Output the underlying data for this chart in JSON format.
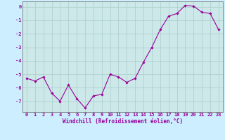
{
  "x": [
    0,
    1,
    2,
    3,
    4,
    5,
    6,
    7,
    8,
    9,
    10,
    11,
    12,
    13,
    14,
    15,
    16,
    17,
    18,
    19,
    20,
    21,
    22,
    23
  ],
  "y": [
    -5.3,
    -5.5,
    -5.2,
    -6.4,
    -7.0,
    -5.8,
    -6.8,
    -7.5,
    -6.6,
    -6.5,
    -5.0,
    -5.2,
    -5.6,
    -5.3,
    -4.1,
    -3.0,
    -1.7,
    -0.7,
    -0.5,
    0.1,
    0.05,
    -0.4,
    -0.5,
    -1.7
  ],
  "line_color": "#990099",
  "marker": "D",
  "marker_size": 1.8,
  "line_width": 0.8,
  "background_color": "#cceeff",
  "plot_bg_color": "#cce8e8",
  "grid_color": "#aacccc",
  "xlabel": "Windchill (Refroidissement éolien,°C)",
  "xlabel_color": "#990099",
  "xlabel_fontsize": 5.5,
  "tick_color": "#990099",
  "tick_fontsize": 5.0,
  "ylim": [
    -7.8,
    0.4
  ],
  "yticks": [
    0,
    -1,
    -2,
    -3,
    -4,
    -5,
    -6,
    -7
  ],
  "xlim": [
    -0.5,
    23.5
  ],
  "spine_color": "#777777",
  "bottom_bar_color": "#9900aa"
}
